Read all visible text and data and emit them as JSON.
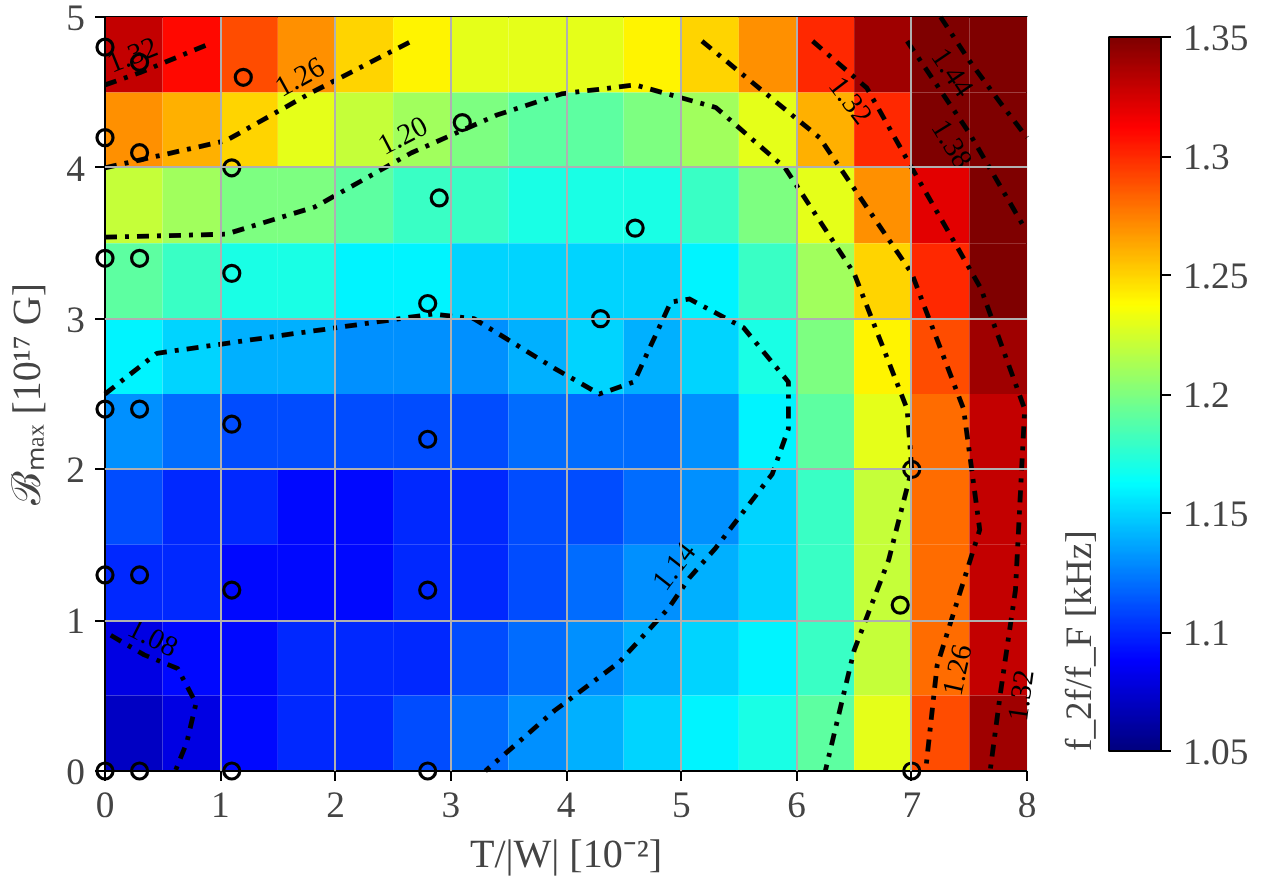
{
  "chart_data": {
    "type": "heatmap",
    "xlabel": "T/|W| [10⁻²]",
    "ylabel": "ℬₘₐₓ [10¹⁷ G]",
    "clabel": "f_2f/f_F [kHz]",
    "xlim": [
      0,
      8
    ],
    "xticks": [
      0,
      1,
      2,
      3,
      4,
      5,
      6,
      7,
      8
    ],
    "ylim": [
      0,
      5
    ],
    "yticks": [
      0,
      1,
      2,
      3,
      4,
      5
    ],
    "clim": [
      1.05,
      1.35
    ],
    "cticks": [
      1.05,
      1.1,
      1.15,
      1.2,
      1.25,
      1.3,
      1.35
    ],
    "grid": true,
    "x": [
      0.25,
      0.75,
      1.25,
      1.75,
      2.25,
      2.75,
      3.25,
      3.75,
      4.25,
      4.75,
      5.25,
      5.75,
      6.25,
      6.75,
      7.25,
      7.75
    ],
    "y": [
      4.75,
      4.25,
      3.75,
      3.25,
      2.75,
      2.25,
      1.75,
      1.25,
      0.75,
      0.25
    ],
    "cells": [
      [
        1.33,
        1.31,
        1.29,
        1.27,
        1.25,
        1.24,
        1.23,
        1.23,
        1.23,
        1.24,
        1.25,
        1.27,
        1.3,
        1.34,
        1.35,
        1.35
      ],
      [
        1.27,
        1.26,
        1.25,
        1.23,
        1.22,
        1.21,
        1.2,
        1.19,
        1.19,
        1.2,
        1.21,
        1.23,
        1.26,
        1.3,
        1.35,
        1.35
      ],
      [
        1.22,
        1.21,
        1.2,
        1.2,
        1.19,
        1.18,
        1.18,
        1.17,
        1.17,
        1.17,
        1.18,
        1.2,
        1.23,
        1.27,
        1.32,
        1.35
      ],
      [
        1.19,
        1.18,
        1.17,
        1.17,
        1.16,
        1.16,
        1.15,
        1.15,
        1.15,
        1.15,
        1.16,
        1.18,
        1.21,
        1.25,
        1.3,
        1.35
      ],
      [
        1.16,
        1.15,
        1.14,
        1.14,
        1.13,
        1.13,
        1.13,
        1.14,
        1.15,
        1.14,
        1.15,
        1.17,
        1.2,
        1.24,
        1.29,
        1.34
      ],
      [
        1.13,
        1.12,
        1.11,
        1.11,
        1.11,
        1.11,
        1.11,
        1.12,
        1.12,
        1.12,
        1.13,
        1.16,
        1.19,
        1.23,
        1.28,
        1.33
      ],
      [
        1.11,
        1.1,
        1.1,
        1.09,
        1.09,
        1.1,
        1.1,
        1.11,
        1.11,
        1.12,
        1.13,
        1.15,
        1.18,
        1.22,
        1.28,
        1.33
      ],
      [
        1.1,
        1.1,
        1.09,
        1.09,
        1.09,
        1.1,
        1.1,
        1.11,
        1.12,
        1.13,
        1.14,
        1.15,
        1.18,
        1.22,
        1.28,
        1.33
      ],
      [
        1.08,
        1.09,
        1.09,
        1.1,
        1.1,
        1.1,
        1.11,
        1.12,
        1.13,
        1.14,
        1.15,
        1.16,
        1.18,
        1.22,
        1.28,
        1.33
      ],
      [
        1.07,
        1.08,
        1.09,
        1.1,
        1.1,
        1.11,
        1.12,
        1.13,
        1.14,
        1.15,
        1.16,
        1.17,
        1.19,
        1.23,
        1.29,
        1.34
      ]
    ],
    "series": [
      {
        "type": "scatter",
        "marker": "circle",
        "color": "#000000",
        "x": [
          0,
          0.3,
          1.2,
          0,
          0.3,
          1.1,
          3.1,
          2.9,
          0,
          0.3,
          1.1,
          2.8,
          4.6,
          4.3,
          0,
          0.3,
          1.1,
          2.8,
          0,
          0.3,
          1.1,
          2.8,
          0,
          0.3,
          1.1,
          2.8,
          7.0,
          6.9,
          7.0
        ],
        "values": [
          4.8,
          4.7,
          4.6,
          4.2,
          4.1,
          4.0,
          4.3,
          3.8,
          3.4,
          3.4,
          3.3,
          3.1,
          3.6,
          3.0,
          2.4,
          2.4,
          2.3,
          2.2,
          1.3,
          1.3,
          1.2,
          1.2,
          0,
          0,
          0,
          0,
          2.0,
          1.1,
          0
        ]
      },
      {
        "type": "line",
        "line_style": "dashdot",
        "color": "#000000",
        "x": [
          0.05,
          0.34,
          0.63,
          0.79,
          0.71,
          0.61
        ],
        "values": [
          0.9,
          0.77,
          0.68,
          0.45,
          0.19,
          0
        ]
      },
      {
        "type": "line",
        "line_style": "dashdot",
        "color": "#000000",
        "x": [
          0,
          0.45,
          1.64,
          2.84,
          3.2,
          3.9,
          4.29,
          4.59,
          4.91,
          5.07,
          5.54,
          5.93,
          5.93,
          5.79,
          5.3,
          5.07,
          4.89,
          4.46,
          3.9,
          3.3
        ],
        "values": [
          2.5,
          2.77,
          2.9,
          3.03,
          3.0,
          2.67,
          2.5,
          2.58,
          3.11,
          3.13,
          2.94,
          2.58,
          2.27,
          1.97,
          1.48,
          1.28,
          1.08,
          0.72,
          0.4,
          0
        ]
      },
      {
        "type": "line",
        "line_style": "dashdot",
        "color": "#000000",
        "x": [
          0,
          1.05,
          1.82,
          2.66,
          3.4,
          3.96,
          4.6,
          5.3,
          5.9,
          6.5,
          6.96,
          7.0,
          6.8,
          6.5,
          6.25
        ],
        "values": [
          3.54,
          3.56,
          3.74,
          4.1,
          4.35,
          4.49,
          4.55,
          4.4,
          4.0,
          3.3,
          2.4,
          2.0,
          1.4,
          0.8,
          0
        ]
      },
      {
        "type": "line",
        "line_style": "dashdot",
        "color": "#000000",
        "x": [
          0,
          1.05,
          1.77,
          2.66
        ],
        "values": [
          4.0,
          4.18,
          4.49,
          4.84
        ]
      },
      {
        "type": "line",
        "line_style": "dashdot",
        "color": "#000000",
        "x": [
          5.18,
          6.2,
          7.0,
          7.45,
          7.59,
          7.22,
          7.12
        ],
        "values": [
          4.84,
          4.2,
          3.3,
          2.4,
          1.6,
          0.7,
          0
        ]
      },
      {
        "type": "line",
        "line_style": "dashdot",
        "color": "#000000",
        "x": [
          0,
          0.3,
          0.93
        ],
        "values": [
          4.55,
          4.63,
          4.83
        ]
      },
      {
        "type": "line",
        "line_style": "dashdot",
        "color": "#000000",
        "x": [
          6.14,
          6.61,
          7.0,
          7.6,
          7.98,
          7.9,
          7.77,
          7.68
        ],
        "values": [
          4.84,
          4.53,
          4.0,
          3.2,
          2.4,
          1.2,
          0.52,
          0
        ]
      },
      {
        "type": "line",
        "line_style": "dashdot",
        "color": "#000000",
        "x": [
          6.96,
          7.5,
          7.98
        ],
        "values": [
          4.84,
          4.23,
          3.6
        ]
      },
      {
        "type": "line",
        "line_style": "dashdot",
        "color": "#000000",
        "x": [
          7.25,
          7.5,
          7.75,
          8.0
        ],
        "values": [
          5.0,
          4.71,
          4.45,
          4.2
        ]
      }
    ],
    "annotations": [
      {
        "text": "1.08",
        "x": 0.34,
        "y": 0.77
      },
      {
        "text": "1.14",
        "x": 5.07,
        "y": 1.28
      },
      {
        "text": "1.20",
        "x": 2.66,
        "y": 4.1
      },
      {
        "text": "1.26",
        "x": 1.77,
        "y": 4.49
      },
      {
        "text": "1.32",
        "x": 0.3,
        "y": 4.63
      },
      {
        "text": "1.26",
        "x": 7.22,
        "y": 0.7
      },
      {
        "text": "1.32",
        "x": 7.77,
        "y": 0.52
      },
      {
        "text": "1.32",
        "x": 6.61,
        "y": 4.53
      },
      {
        "text": "1.38",
        "x": 7.5,
        "y": 4.23
      },
      {
        "text": "1.44",
        "x": 7.5,
        "y": 4.71
      }
    ]
  }
}
